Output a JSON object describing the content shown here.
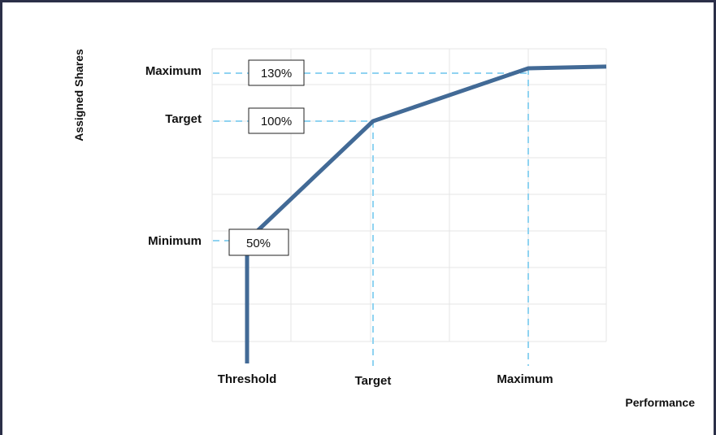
{
  "chart_data": {
    "type": "line",
    "title": "",
    "xlabel": "Performance",
    "ylabel": "Assigned Shares",
    "x_categories": [
      "Threshold",
      "Target",
      "Maximum"
    ],
    "y_categories": [
      "Minimum",
      "Target",
      "Maximum"
    ],
    "series": [
      {
        "x": [
          "Threshold",
          "Threshold",
          "Target",
          "Maximum",
          "above Maximum"
        ],
        "y": [
          0,
          50,
          100,
          130,
          131
        ]
      }
    ],
    "annotations": [
      {
        "level": "Minimum",
        "label": "50%"
      },
      {
        "level": "Target",
        "label": "100%"
      },
      {
        "level": "Maximum",
        "label": "130%"
      }
    ],
    "grid": true,
    "colors": {
      "line": "#426a96",
      "guide": "#8fd3f1",
      "grid": "#e6e6e6",
      "frame": "#2b2f48"
    }
  }
}
